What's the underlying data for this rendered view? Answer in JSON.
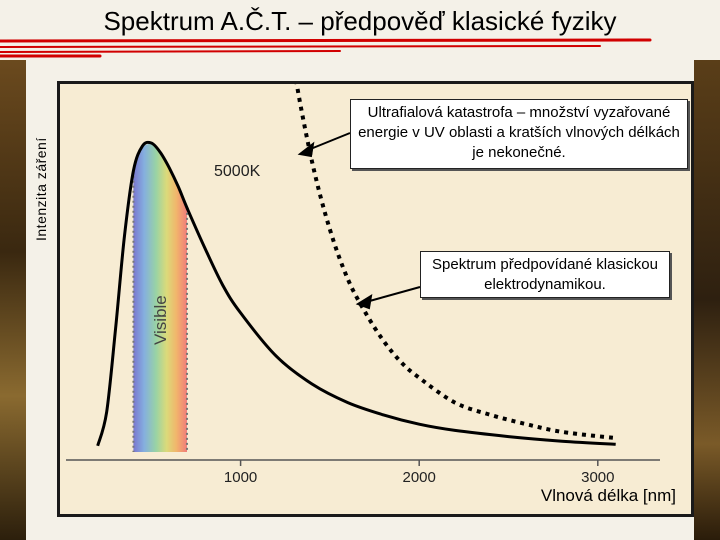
{
  "title": "Spektrum A.Č.T. – předpověď klasické fyziky",
  "callouts": {
    "uv_catastrophe": "Ultrafialová katastrofa – množství vyzařované energie v UV oblasti a kratších vlnových délkách je nekonečné.",
    "classical_spectrum": "Spektrum předpovídané klasickou elektrodynamikou."
  },
  "colors": {
    "deco_red": "#d10000",
    "frame": "#1a1a1a",
    "plot_bg": "#f7ecd3",
    "curve": "#000000"
  },
  "chart_data": {
    "type": "line",
    "xlabel": "Vlnová délka [nm]",
    "ylabel": "Intenzita záření",
    "xlim": [
      0,
      3400
    ],
    "x_ticks": [
      1000,
      2000,
      3000
    ],
    "grid": false,
    "visible_band": {
      "label": "Visible",
      "range": [
        400,
        700
      ]
    },
    "annotations": [
      {
        "text": "5000K"
      }
    ],
    "series": [
      {
        "kind": "planck",
        "x": [
          200,
          250,
          300,
          350,
          400,
          450,
          500,
          550,
          600,
          650,
          700,
          800,
          900,
          1000,
          1200,
          1400,
          1600,
          1800,
          2000,
          2200,
          2500,
          2800,
          3100
        ],
        "y": [
          0.02,
          0.13,
          0.4,
          0.7,
          0.91,
          0.99,
          1.0,
          0.97,
          0.92,
          0.86,
          0.79,
          0.66,
          0.54,
          0.45,
          0.31,
          0.22,
          0.16,
          0.12,
          0.09,
          0.07,
          0.05,
          0.035,
          0.025
        ]
      },
      {
        "kind": "rayleigh-jeans",
        "style": "dashed",
        "x": [
          1230,
          1300,
          1400,
          1500,
          1600,
          1700,
          1800,
          1900,
          2000,
          2200,
          2400,
          2600,
          2800,
          3100
        ],
        "y": [
          1.55,
          1.24,
          0.94,
          0.72,
          0.56,
          0.45,
          0.36,
          0.29,
          0.24,
          0.16,
          0.12,
          0.09,
          0.065,
          0.045
        ]
      }
    ]
  }
}
